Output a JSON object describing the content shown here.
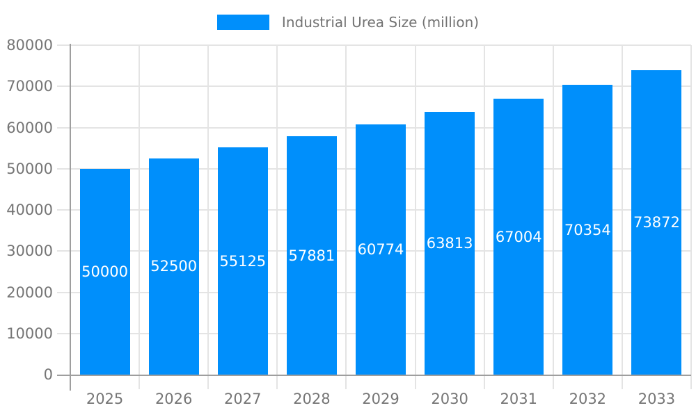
{
  "legend": {
    "label": "Industrial Urea Size (million)"
  },
  "colors": {
    "accent": "#008FFB",
    "grid": "#e4e4e4",
    "axis": "#9e9e9e",
    "tick_text": "#757575",
    "legend_text": "#737373",
    "value_label": "#ffffff",
    "background": "#ffffff"
  },
  "chart_data": {
    "type": "bar",
    "title": "",
    "xlabel": "",
    "ylabel": "",
    "legend_entries": [
      "Industrial Urea Size (million)"
    ],
    "legend_position": "top",
    "categories": [
      "2025",
      "2026",
      "2027",
      "2028",
      "2029",
      "2030",
      "2031",
      "2032",
      "2033"
    ],
    "series": [
      {
        "name": "Industrial Urea Size (million)",
        "values": [
          50000,
          52500,
          55125,
          57881,
          60774,
          63813,
          67004,
          70354,
          73872
        ]
      }
    ],
    "value_labels_shown": true,
    "value_label_position": "center-of-bar",
    "ylim": [
      0,
      80000
    ],
    "yticks": [
      0,
      10000,
      20000,
      30000,
      40000,
      50000,
      60000,
      70000,
      80000
    ],
    "grid": true
  }
}
